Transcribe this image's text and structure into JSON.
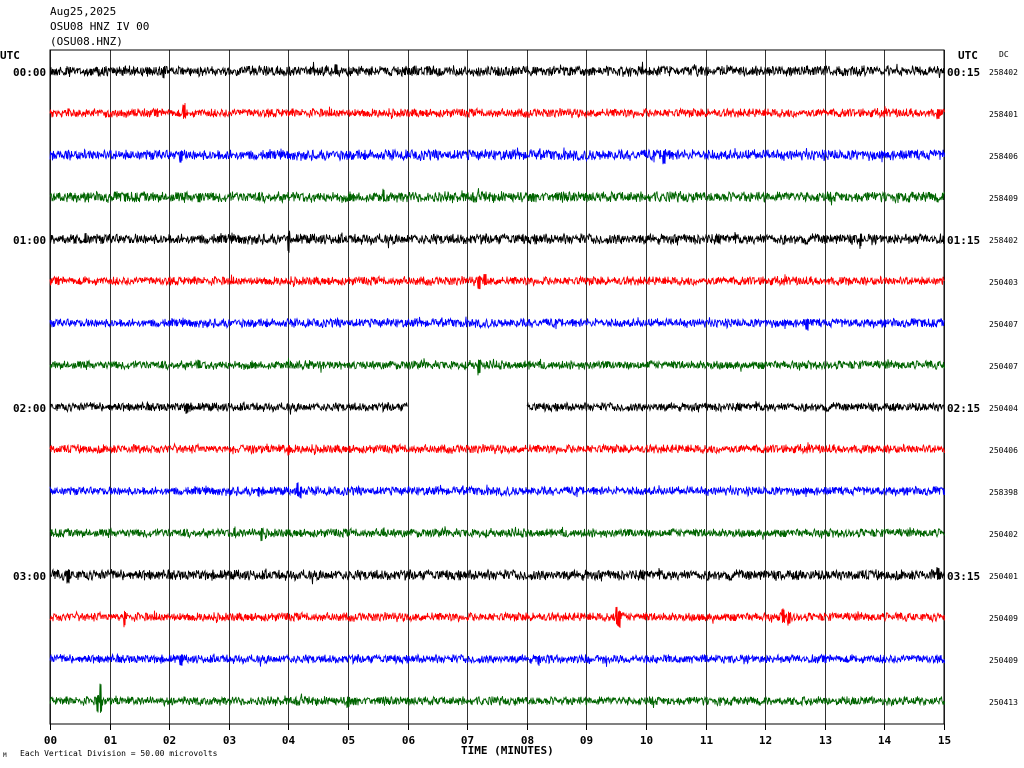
{
  "header": {
    "date": "Aug25,2025",
    "station_line": "OSU08 HNZ IV 00",
    "station_code": "(OSU08.HNZ)"
  },
  "left_axis": {
    "unit": "UTC"
  },
  "right_axis": {
    "unit": "UTC",
    "dc_label": "DC"
  },
  "footer": {
    "scale_note": "Each Vertical Division =    50.00 microvolts",
    "corner_mark": "M"
  },
  "chart_data": {
    "type": "line",
    "title": "",
    "xlabel": "TIME (MINUTES)",
    "ylabel": "",
    "x_ticks": [
      "00",
      "01",
      "02",
      "03",
      "04",
      "05",
      "06",
      "07",
      "08",
      "09",
      "10",
      "11",
      "12",
      "13",
      "14",
      "15"
    ],
    "xlim": [
      0,
      15
    ],
    "grid": true,
    "trace_colors": [
      "#000000",
      "#ff0000",
      "#0000ff",
      "#006400"
    ],
    "hour_labels_left": [
      "00:00",
      "01:00",
      "02:00",
      "03:00"
    ],
    "hour_labels_right": [
      "00:15",
      "01:15",
      "02:15",
      "03:15"
    ],
    "traces": [
      {
        "dc": "258402",
        "color": "#000000",
        "amp": 6,
        "spikes": [
          [
            1.9,
            9
          ],
          [
            4.8,
            -7
          ]
        ]
      },
      {
        "dc": "258401",
        "color": "#ff0000",
        "amp": 5,
        "spikes": [
          [
            2.25,
            -10
          ],
          [
            14.9,
            7
          ]
        ]
      },
      {
        "dc": "258406",
        "color": "#0000ff",
        "amp": 6,
        "spikes": [
          [
            2.2,
            8
          ],
          [
            10.3,
            10
          ]
        ]
      },
      {
        "dc": "258409",
        "color": "#006400",
        "amp": 6,
        "spikes": [
          [
            5.6,
            -9
          ],
          [
            2.5,
            7
          ]
        ]
      },
      {
        "dc": "258402",
        "color": "#000000",
        "amp": 6,
        "spikes": [
          [
            4.0,
            14
          ],
          [
            0.6,
            -8
          ],
          [
            13.6,
            10
          ]
        ]
      },
      {
        "dc": "250403",
        "color": "#ff0000",
        "amp": 5,
        "spikes": [
          [
            7.2,
            9
          ],
          [
            7.3,
            -8
          ]
        ]
      },
      {
        "dc": "250407",
        "color": "#0000ff",
        "amp": 5,
        "spikes": [
          [
            12.7,
            8
          ]
        ]
      },
      {
        "dc": "250407",
        "color": "#006400",
        "amp": 5,
        "spikes": [
          [
            7.2,
            11
          ],
          [
            2.5,
            -6
          ]
        ]
      },
      {
        "dc": "250404",
        "color": "#000000",
        "amp": 5,
        "spikes": [
          [
            2.3,
            7
          ]
        ],
        "gap": [
          6.0,
          8.0
        ]
      },
      {
        "dc": "250406",
        "color": "#ff0000",
        "amp": 5,
        "spikes": [
          [
            4.0,
            7
          ]
        ]
      },
      {
        "dc": "258398",
        "color": "#0000ff",
        "amp": 5,
        "spikes": [
          [
            4.15,
            -10
          ],
          [
            3.5,
            7
          ],
          [
            4.2,
            9
          ]
        ]
      },
      {
        "dc": "250402",
        "color": "#006400",
        "amp": 5,
        "spikes": [
          [
            3.55,
            9
          ],
          [
            3.1,
            -7
          ],
          [
            5.6,
            -6
          ]
        ]
      },
      {
        "dc": "250401",
        "color": "#000000",
        "amp": 6,
        "spikes": [
          [
            0.3,
            10
          ],
          [
            14.9,
            -8
          ]
        ]
      },
      {
        "dc": "250409",
        "color": "#ff0000",
        "amp": 5,
        "spikes": [
          [
            1.25,
            11
          ],
          [
            9.5,
            -13
          ],
          [
            9.55,
            11
          ],
          [
            12.4,
            9
          ],
          [
            12.3,
            -10
          ]
        ]
      },
      {
        "dc": "250409",
        "color": "#0000ff",
        "amp": 5,
        "spikes": [
          [
            2.2,
            8
          ],
          [
            8.2,
            7
          ]
        ]
      },
      {
        "dc": "250413",
        "color": "#006400",
        "amp": 5,
        "spikes": [
          [
            0.8,
            12
          ],
          [
            0.85,
            -20
          ],
          [
            5.0,
            8
          ]
        ]
      }
    ]
  }
}
